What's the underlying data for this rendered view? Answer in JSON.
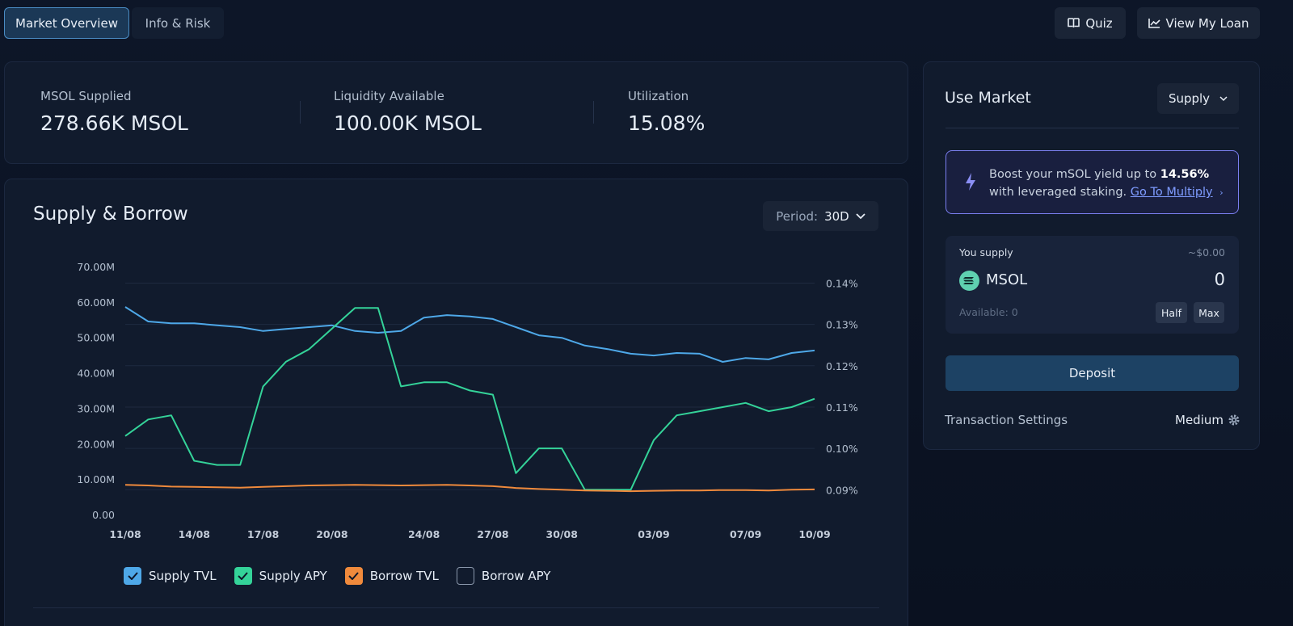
{
  "tabs": [
    "Market Overview",
    "Info & Risk"
  ],
  "actions": [
    "Quiz",
    "View My Loan"
  ],
  "stats": [
    {
      "label": "MSOL Supplied",
      "value": "278.66K MSOL"
    },
    {
      "label": "Liquidity Available",
      "value": "100.00K MSOL"
    },
    {
      "label": "Utilization",
      "value": "15.08%"
    }
  ],
  "chart_data": {
    "type": "line",
    "title": "Supply & Borrow",
    "period_label": "Period:",
    "period": "30D",
    "categories": [
      "11/08",
      null,
      null,
      "14/08",
      null,
      null,
      "17/08",
      null,
      null,
      "20/08",
      null,
      null,
      null,
      "24/08",
      null,
      null,
      "27/08",
      null,
      null,
      "30/08",
      null,
      null,
      null,
      "03/09",
      null,
      null,
      null,
      "07/09",
      null,
      null,
      "10/09"
    ],
    "series": [
      {
        "name": "Supply TVL",
        "color": "#4ea8e8",
        "axis": "y",
        "visible": true,
        "values": [
          58600000,
          54500000,
          54000000,
          54000000,
          53400000,
          52900000,
          51800000,
          52400000,
          52900000,
          53400000,
          51800000,
          51300000,
          51800000,
          55600000,
          56300000,
          55900000,
          55200000,
          52900000,
          50600000,
          49900000,
          47700000,
          46700000,
          45400000,
          44900000,
          45600000,
          45400000,
          43100000,
          44200000,
          43800000,
          45600000,
          46300000
        ]
      },
      {
        "name": "Supply APY",
        "color": "#34d399",
        "axis": "y2",
        "visible": true,
        "values": [
          0.103,
          0.107,
          0.108,
          0.097,
          0.096,
          0.096,
          0.115,
          0.121,
          0.124,
          0.129,
          0.134,
          0.134,
          0.115,
          0.116,
          0.116,
          0.114,
          0.113,
          0.094,
          0.1,
          0.1,
          0.09,
          0.09,
          0.09,
          0.102,
          0.108,
          0.109,
          0.11,
          0.111,
          0.109,
          0.11,
          0.112
        ]
      },
      {
        "name": "Borrow TVL",
        "color": "#f08a3c",
        "axis": "y",
        "visible": true,
        "values": [
          8400000,
          8200000,
          7900000,
          7800000,
          7700000,
          7600000,
          7800000,
          8000000,
          8200000,
          8300000,
          8400000,
          8300000,
          8200000,
          8300000,
          8400000,
          8200000,
          8000000,
          7500000,
          7200000,
          7000000,
          6800000,
          6700000,
          6600000,
          6700000,
          6800000,
          6800000,
          6900000,
          6900000,
          6800000,
          7000000,
          7100000
        ]
      },
      {
        "name": "Borrow APY",
        "axis": "y2",
        "visible": false
      }
    ],
    "ylim": [
      0,
      70000000
    ],
    "yticks": [
      {
        "value": 0,
        "label": "0.00"
      },
      {
        "value": 10000000,
        "label": "10.00M"
      },
      {
        "value": 20000000,
        "label": "20.00M"
      },
      {
        "value": 30000000,
        "label": "30.00M"
      },
      {
        "value": 40000000,
        "label": "40.00M"
      },
      {
        "value": 50000000,
        "label": "50.00M"
      },
      {
        "value": 60000000,
        "label": "60.00M"
      },
      {
        "value": 70000000,
        "label": "70.00M"
      }
    ],
    "y2lim": [
      0.084,
      0.144
    ],
    "y2ticks": [
      {
        "value": 0.09,
        "label": "0.09%"
      },
      {
        "value": 0.1,
        "label": "0.10%"
      },
      {
        "value": 0.11,
        "label": "0.11%"
      },
      {
        "value": 0.12,
        "label": "0.12%"
      },
      {
        "value": 0.13,
        "label": "0.13%"
      },
      {
        "value": 0.14,
        "label": "0.14%"
      }
    ],
    "grid": true
  },
  "use_market": {
    "title": "Use Market",
    "mode": "Supply",
    "promo": {
      "text": "Boost your mSOL yield up to",
      "highlight": "14.56%",
      "text_after": "with leveraged staking.",
      "link": "Go To Multiply"
    },
    "supply": {
      "label": "You supply",
      "usd": "~$0.00",
      "token": "MSOL",
      "amount": "0",
      "available": "Available: 0",
      "half": "Half",
      "max": "Max"
    },
    "deposit": "Deposit",
    "settings_label": "Transaction Settings",
    "settings_value": "Medium"
  }
}
